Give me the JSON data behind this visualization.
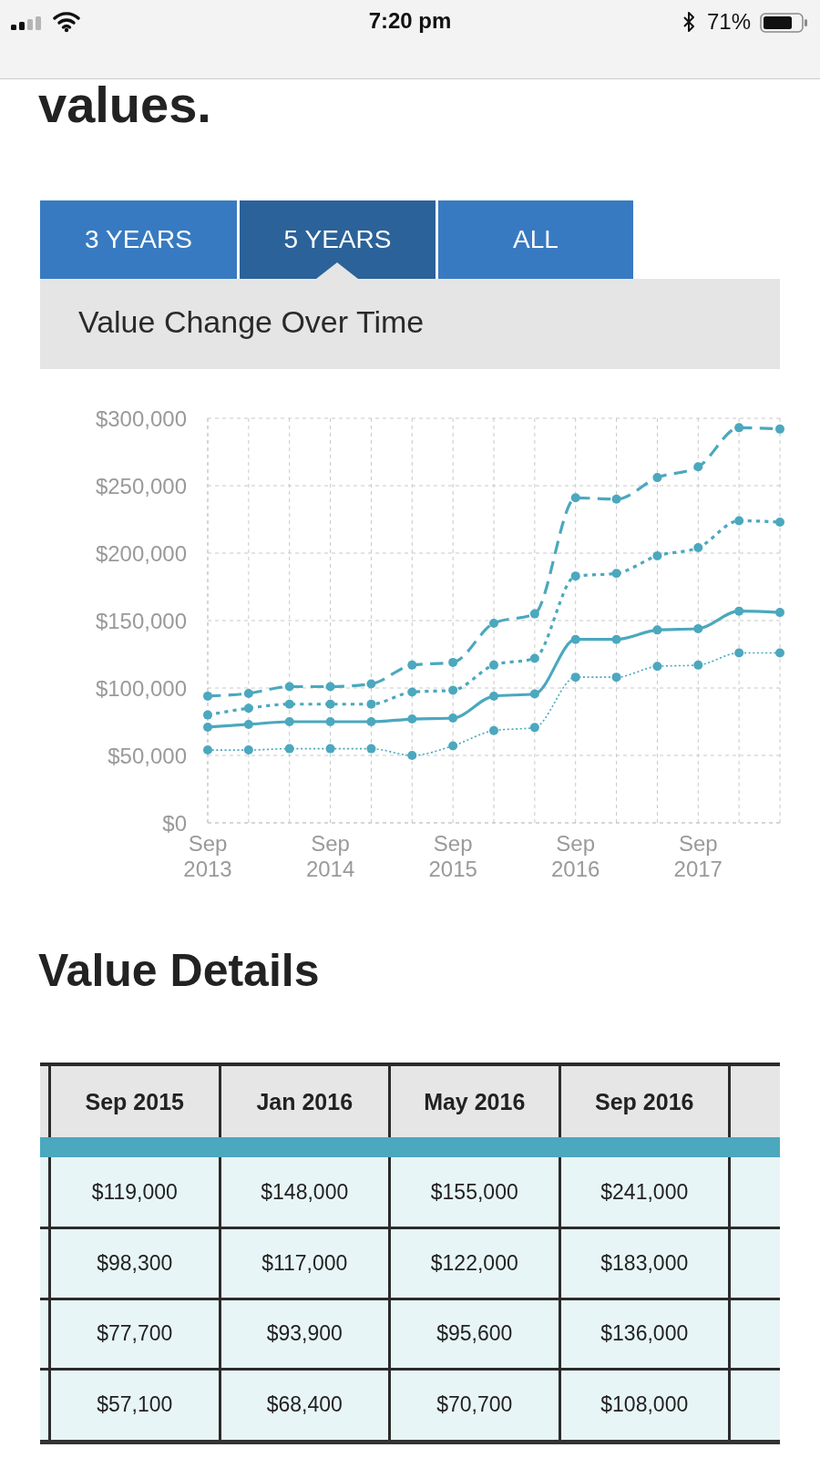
{
  "chart_data": [
    {
      "type": "line",
      "title": "Value Change Over Time",
      "annotations": [
        "7:20 pm",
        "71%",
        "values.",
        "3 YEARS",
        "5 YEARS",
        "ALL"
      ],
      "categories": [
        "Sep 2013",
        null,
        null,
        "Sep 2014",
        null,
        null,
        "Sep 2015",
        null,
        null,
        "Sep 2016",
        null,
        null,
        "Sep 2017",
        null,
        null
      ],
      "series": [
        {
          "color": "#4ba8be",
          "line_style": "dashed",
          "values": [
            94000,
            96000,
            101000,
            101000,
            103000,
            117000,
            119000,
            148000,
            155000,
            241000,
            240000,
            256000,
            264000,
            293000,
            292000
          ]
        },
        {
          "color": "#4ba8be",
          "line_style": "dotted",
          "values": [
            80000,
            85000,
            88000,
            88000,
            88000,
            97000,
            98300,
            117000,
            122000,
            183000,
            185000,
            198000,
            204000,
            224000,
            223000
          ]
        },
        {
          "color": "#4ba8be",
          "line_style": "solid",
          "values": [
            71000,
            73000,
            75000,
            75000,
            75000,
            77000,
            77700,
            93900,
            95600,
            136000,
            136000,
            143000,
            144000,
            157000,
            156000
          ]
        },
        {
          "color": "#4ba8be",
          "line_style": "dotted",
          "values": [
            54000,
            54000,
            55000,
            55000,
            55000,
            50000,
            57100,
            68400,
            70700,
            108000,
            108000,
            116000,
            117000,
            126000,
            126000
          ]
        }
      ],
      "ylim": [
        0,
        300000
      ],
      "yticks": [
        {
          "value": 0,
          "label": "$0"
        },
        {
          "value": 50000,
          "label": "$50,000"
        },
        {
          "value": 100000,
          "label": "$100,000"
        },
        {
          "value": 150000,
          "label": "$150,000"
        },
        {
          "value": 200000,
          "label": "$200,000"
        },
        {
          "value": 250000,
          "label": "$250,000"
        },
        {
          "value": 300000,
          "label": "$300,000"
        }
      ],
      "grid": true,
      "marker": "circle"
    },
    {
      "type": "other",
      "title": "Value Details",
      "categories": [
        "Sep 2015",
        "Jan 2016",
        "May 2016",
        "Sep 2016"
      ],
      "series": [
        {
          "values": [
            119000,
            148000,
            155000,
            241000
          ],
          "value_labels": [
            "$119,000",
            "$148,000",
            "$155,000",
            "$241,000"
          ]
        },
        {
          "values": [
            98300,
            117000,
            122000,
            183000
          ],
          "value_labels": [
            "$98,300",
            "$117,000",
            "$122,000",
            "$183,000"
          ]
        },
        {
          "values": [
            77700,
            93900,
            95600,
            136000
          ],
          "value_labels": [
            "$77,700",
            "$93,900",
            "$95,600",
            "$136,000"
          ]
        },
        {
          "values": [
            57100,
            68400,
            70700,
            108000
          ],
          "value_labels": [
            "$57,100",
            "$68,400",
            "$70,700",
            "$108,000"
          ]
        }
      ]
    }
  ]
}
